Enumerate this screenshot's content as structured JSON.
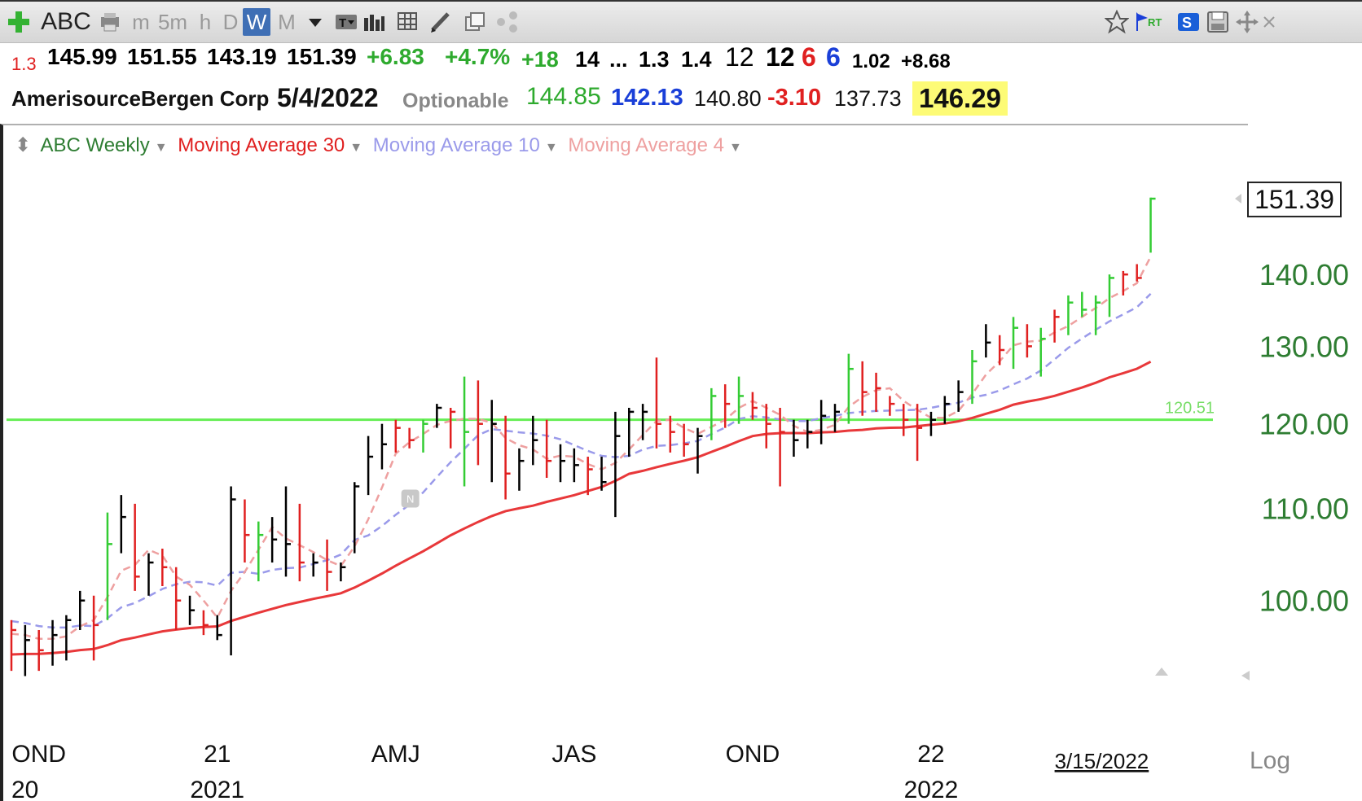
{
  "toolbar": {
    "symbol": "ABC",
    "intervals": [
      "m",
      "5m",
      "h",
      "D",
      "W",
      "M"
    ],
    "active_interval": "W",
    "rt_label": "RT",
    "s_label": "S"
  },
  "quote_row1": [
    {
      "text": "1.3",
      "color": "#e02020"
    },
    {
      "text": "145.99",
      "color": "#000000"
    },
    {
      "text": "151.55",
      "color": "#000000"
    },
    {
      "text": "143.19",
      "color": "#000000"
    },
    {
      "text": "151.39",
      "color": "#000000"
    },
    {
      "text": "+6.83",
      "color": "#2eaa2e"
    },
    {
      "text": "+4.7%",
      "color": "#2eaa2e"
    },
    {
      "text": "+18",
      "color": "#2eaa2e"
    },
    {
      "text": "14",
      "color": "#000000"
    },
    {
      "text": "...",
      "color": "#000000"
    },
    {
      "text": "1.3",
      "color": "#000000"
    },
    {
      "text": "1.4",
      "color": "#000000"
    },
    {
      "text": "12",
      "color": "#000000"
    },
    {
      "text": "12",
      "color": "#000000"
    },
    {
      "text": "6",
      "color": "#e02020"
    },
    {
      "text": "6",
      "color": "#1a3fd8"
    },
    {
      "text": "1.02",
      "color": "#000000"
    },
    {
      "text": "+8.68",
      "color": "#000000"
    }
  ],
  "quote_row2": {
    "company": "AmerisourceBergen Corp",
    "date": "5/4/2022",
    "optionable": "Optionable",
    "v1": "144.85",
    "v2": "142.13",
    "v3": "140.80",
    "v4": "-3.10",
    "v5": "137.73",
    "last": "146.29"
  },
  "legend": {
    "main": "ABC Weekly",
    "ma30": "Moving Average 30",
    "ma10": "Moving Average 10",
    "ma4": "Moving Average 4"
  },
  "colors": {
    "up": "#33cc33",
    "down": "#e02020",
    "neutral": "#000000",
    "ma30": "#e8383a",
    "ma10": "#9a9aea",
    "ma4": "#eea0a0",
    "hline": "#66ee55",
    "axis_text": "#2e7d32"
  },
  "chart_data": {
    "type": "ohlc",
    "title": "ABC Weekly",
    "ylim": [
      91,
      155
    ],
    "log_scale": true,
    "y_ticks": [
      "100.00",
      "110.00",
      "120.00",
      "130.00",
      "140.00"
    ],
    "last_price_label": "151.39",
    "hline": {
      "value": 120.51,
      "label": "120.51"
    },
    "x_quarter_labels": [
      {
        "text": "OND",
        "bar": 2
      },
      {
        "text": "21",
        "bar": 15
      },
      {
        "text": "AMJ",
        "bar": 28
      },
      {
        "text": "JAS",
        "bar": 41
      },
      {
        "text": "OND",
        "bar": 54
      },
      {
        "text": "22",
        "bar": 67
      },
      {
        "text": "3/15/2022",
        "bar": 76
      }
    ],
    "x_year_labels": [
      {
        "text": "20",
        "bar": 0
      },
      {
        "text": "2021",
        "bar": 15
      },
      {
        "text": "2022",
        "bar": 67
      }
    ],
    "log_label": "Log",
    "bars": [
      {
        "h": 98.0,
        "l": 93.0,
        "c": 97.0,
        "s": "d"
      },
      {
        "h": 97.5,
        "l": 92.5,
        "c": 96.0,
        "s": "n"
      },
      {
        "h": 97.0,
        "l": 93.0,
        "c": 95.0,
        "s": "d"
      },
      {
        "h": 98.0,
        "l": 93.5,
        "c": 96.5,
        "s": "n"
      },
      {
        "h": 98.5,
        "l": 94.0,
        "c": 98.0,
        "s": "n"
      },
      {
        "h": 101.0,
        "l": 97.0,
        "c": 100.0,
        "s": "n"
      },
      {
        "h": 100.5,
        "l": 94.0,
        "c": 97.5,
        "s": "d"
      },
      {
        "h": 109.5,
        "l": 98.0,
        "c": 106.0,
        "s": "u"
      },
      {
        "h": 111.5,
        "l": 105.0,
        "c": 109.0,
        "s": "n"
      },
      {
        "h": 110.5,
        "l": 101.0,
        "c": 102.5,
        "s": "d"
      },
      {
        "h": 105.0,
        "l": 100.5,
        "c": 104.0,
        "s": "n"
      },
      {
        "h": 105.5,
        "l": 101.5,
        "c": 103.5,
        "s": "d"
      },
      {
        "h": 103.5,
        "l": 97.0,
        "c": 100.0,
        "s": "d"
      },
      {
        "h": 100.5,
        "l": 97.5,
        "c": 99.0,
        "s": "n"
      },
      {
        "h": 99.0,
        "l": 96.5,
        "c": 97.5,
        "s": "d"
      },
      {
        "h": 98.5,
        "l": 96.0,
        "c": 96.5,
        "s": "n"
      },
      {
        "h": 112.5,
        "l": 94.5,
        "c": 111.0,
        "s": "n"
      },
      {
        "h": 111.0,
        "l": 104.0,
        "c": 107.0,
        "s": "d"
      },
      {
        "h": 108.5,
        "l": 102.0,
        "c": 107.0,
        "s": "u"
      },
      {
        "h": 109.0,
        "l": 104.0,
        "c": 106.5,
        "s": "n"
      },
      {
        "h": 112.5,
        "l": 102.5,
        "c": 106.0,
        "s": "n"
      },
      {
        "h": 110.5,
        "l": 102.0,
        "c": 104.0,
        "s": "d"
      },
      {
        "h": 105.0,
        "l": 102.5,
        "c": 104.0,
        "s": "n"
      },
      {
        "h": 106.5,
        "l": 101.0,
        "c": 103.0,
        "s": "d"
      },
      {
        "h": 104.0,
        "l": 102.0,
        "c": 103.5,
        "s": "n"
      },
      {
        "h": 113.0,
        "l": 105.0,
        "c": 112.5,
        "s": "n"
      },
      {
        "h": 118.5,
        "l": 111.5,
        "c": 116.0,
        "s": "n"
      },
      {
        "h": 120.0,
        "l": 114.5,
        "c": 117.5,
        "s": "n"
      },
      {
        "h": 120.5,
        "l": 116.5,
        "c": 119.5,
        "s": "d"
      },
      {
        "h": 119.5,
        "l": 117.0,
        "c": 118.0,
        "s": "d"
      },
      {
        "h": 120.5,
        "l": 116.5,
        "c": 120.0,
        "s": "u"
      },
      {
        "h": 122.5,
        "l": 119.5,
        "c": 122.0,
        "s": "n"
      },
      {
        "h": 122.0,
        "l": 117.0,
        "c": 121.5,
        "s": "d"
      },
      {
        "h": 126.0,
        "l": 112.5,
        "c": 119.0,
        "s": "u"
      },
      {
        "h": 125.5,
        "l": 115.0,
        "c": 120.0,
        "s": "d"
      },
      {
        "h": 123.0,
        "l": 113.0,
        "c": 120.0,
        "s": "n"
      },
      {
        "h": 121.0,
        "l": 111.0,
        "c": 114.0,
        "s": "d"
      },
      {
        "h": 117.0,
        "l": 112.0,
        "c": 115.5,
        "s": "n"
      },
      {
        "h": 121.0,
        "l": 115.0,
        "c": 118.0,
        "s": "n"
      },
      {
        "h": 120.5,
        "l": 113.5,
        "c": 115.5,
        "s": "d"
      },
      {
        "h": 117.5,
        "l": 113.0,
        "c": 115.5,
        "s": "n"
      },
      {
        "h": 117.0,
        "l": 113.0,
        "c": 115.0,
        "s": "n"
      },
      {
        "h": 116.0,
        "l": 111.5,
        "c": 114.5,
        "s": "d"
      },
      {
        "h": 116.0,
        "l": 112.0,
        "c": 113.0,
        "s": "n"
      },
      {
        "h": 121.5,
        "l": 109.0,
        "c": 118.5,
        "s": "n"
      },
      {
        "h": 122.0,
        "l": 116.0,
        "c": 121.5,
        "s": "n"
      },
      {
        "h": 122.5,
        "l": 118.0,
        "c": 121.5,
        "s": "n"
      },
      {
        "h": 128.5,
        "l": 117.0,
        "c": 120.0,
        "s": "d"
      },
      {
        "h": 121.0,
        "l": 116.5,
        "c": 119.0,
        "s": "d"
      },
      {
        "h": 120.0,
        "l": 116.0,
        "c": 117.5,
        "s": "d"
      },
      {
        "h": 119.5,
        "l": 114.0,
        "c": 118.5,
        "s": "n"
      },
      {
        "h": 124.5,
        "l": 118.0,
        "c": 123.5,
        "s": "u"
      },
      {
        "h": 125.0,
        "l": 119.5,
        "c": 122.5,
        "s": "d"
      },
      {
        "h": 126.0,
        "l": 120.0,
        "c": 123.5,
        "s": "u"
      },
      {
        "h": 124.0,
        "l": 120.5,
        "c": 122.0,
        "s": "d"
      },
      {
        "h": 122.5,
        "l": 117.0,
        "c": 120.0,
        "s": "d"
      },
      {
        "h": 122.0,
        "l": 112.5,
        "c": 119.0,
        "s": "d"
      },
      {
        "h": 120.5,
        "l": 116.0,
        "c": 118.0,
        "s": "n"
      },
      {
        "h": 120.5,
        "l": 117.0,
        "c": 119.0,
        "s": "n"
      },
      {
        "h": 123.0,
        "l": 117.5,
        "c": 121.0,
        "s": "n"
      },
      {
        "h": 122.5,
        "l": 119.0,
        "c": 121.5,
        "s": "n"
      },
      {
        "h": 129.0,
        "l": 120.0,
        "c": 127.0,
        "s": "u"
      },
      {
        "h": 128.0,
        "l": 121.0,
        "c": 124.0,
        "s": "d"
      },
      {
        "h": 126.5,
        "l": 121.5,
        "c": 124.5,
        "s": "d"
      },
      {
        "h": 123.5,
        "l": 121.0,
        "c": 122.5,
        "s": "d"
      },
      {
        "h": 122.5,
        "l": 118.5,
        "c": 120.5,
        "s": "d"
      },
      {
        "h": 122.5,
        "l": 115.5,
        "c": 119.5,
        "s": "d"
      },
      {
        "h": 121.5,
        "l": 118.5,
        "c": 120.5,
        "s": "n"
      },
      {
        "h": 123.5,
        "l": 120.0,
        "c": 122.5,
        "s": "n"
      },
      {
        "h": 125.5,
        "l": 121.5,
        "c": 124.0,
        "s": "n"
      },
      {
        "h": 129.5,
        "l": 122.5,
        "c": 128.0,
        "s": "u"
      },
      {
        "h": 133.0,
        "l": 128.5,
        "c": 130.5,
        "s": "n"
      },
      {
        "h": 131.5,
        "l": 127.5,
        "c": 129.5,
        "s": "d"
      },
      {
        "h": 134.0,
        "l": 127.0,
        "c": 132.5,
        "s": "u"
      },
      {
        "h": 133.0,
        "l": 128.5,
        "c": 130.0,
        "s": "d"
      },
      {
        "h": 132.5,
        "l": 126.0,
        "c": 131.0,
        "s": "u"
      },
      {
        "h": 135.0,
        "l": 130.5,
        "c": 134.0,
        "s": "d"
      },
      {
        "h": 137.0,
        "l": 131.5,
        "c": 136.0,
        "s": "u"
      },
      {
        "h": 137.5,
        "l": 134.0,
        "c": 135.0,
        "s": "u"
      },
      {
        "h": 137.0,
        "l": 131.5,
        "c": 136.0,
        "s": "u"
      },
      {
        "h": 140.0,
        "l": 134.0,
        "c": 139.5,
        "s": "u"
      },
      {
        "h": 140.5,
        "l": 137.0,
        "c": 140.0,
        "s": "d"
      },
      {
        "h": 141.5,
        "l": 139.0,
        "c": 139.5,
        "s": "d"
      },
      {
        "h": 151.55,
        "l": 143.19,
        "c": 151.39,
        "s": "u"
      }
    ]
  }
}
